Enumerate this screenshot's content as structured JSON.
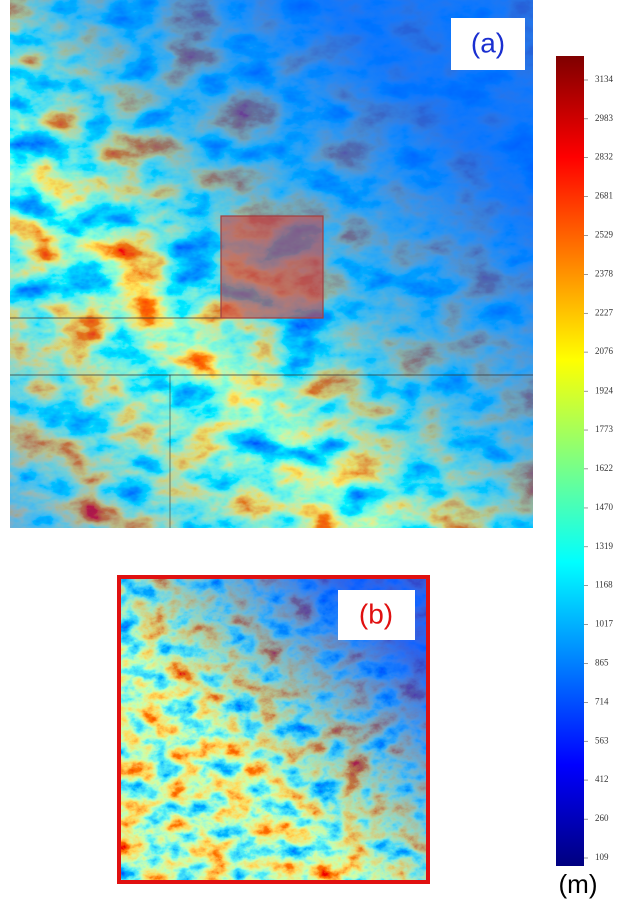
{
  "panels": [
    {
      "label": "(a)"
    },
    {
      "label": "(b)"
    }
  ],
  "colorbar": {
    "unit": "(m)",
    "lim": [
      109,
      3134
    ],
    "ticks": [
      109,
      260,
      412,
      563,
      714,
      865,
      1017,
      1168,
      1319,
      1470,
      1622,
      1773,
      1924,
      2076,
      2227,
      2378,
      2529,
      2681,
      2832,
      2983,
      3134
    ]
  }
}
